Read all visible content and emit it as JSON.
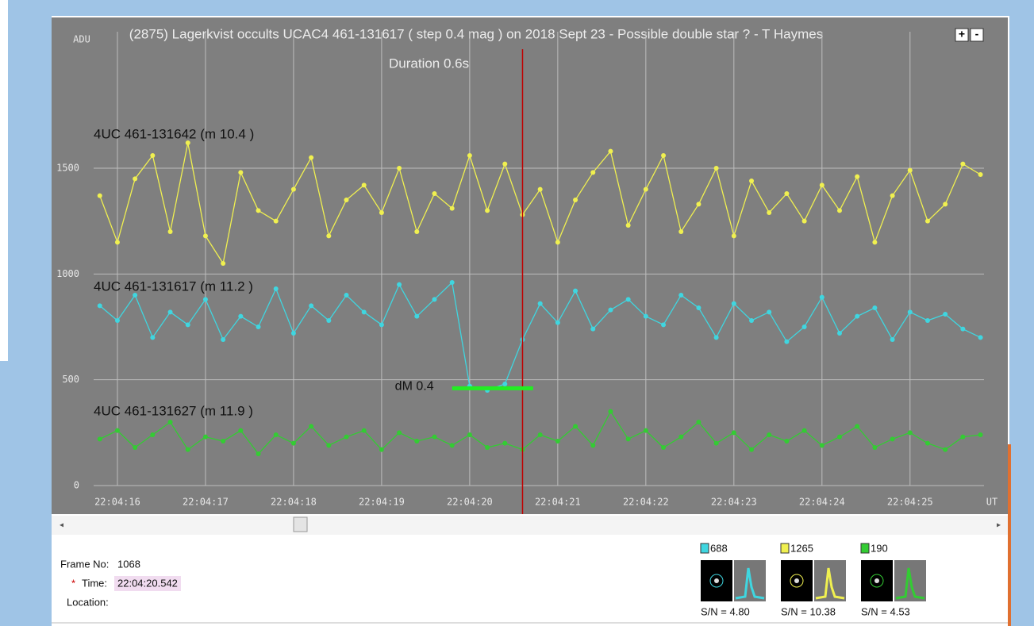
{
  "chart_data": {
    "type": "line",
    "title": "(2875) Lagerkvist occults UCAC4 461-131617 ( step 0.4 mag ) on 2018 Sept 23 - Possible double star ? - T Haymes",
    "ylabel": "ADU",
    "xlabel": "UT",
    "annotation": "Duration 0.6s",
    "dm_label": "dM  0.4",
    "dm_bar": {
      "x": [
        19.8,
        20.72
      ],
      "y": 460
    },
    "cursor_x": 20.6,
    "x": [
      15.8,
      16.0,
      16.2,
      16.4,
      16.6,
      16.8,
      17.0,
      17.2,
      17.4,
      17.6,
      17.8,
      18.0,
      18.2,
      18.4,
      18.6,
      18.8,
      19.0,
      19.2,
      19.4,
      19.6,
      19.8,
      20.0,
      20.2,
      20.4,
      20.6,
      20.8,
      21.0,
      21.2,
      21.4,
      21.6,
      21.8,
      22.0,
      22.2,
      22.4,
      22.6,
      22.8,
      23.0,
      23.2,
      23.4,
      23.6,
      23.8,
      24.0,
      24.2,
      24.4,
      24.6,
      24.8,
      25.0,
      25.2,
      25.4,
      25.6,
      25.8
    ],
    "series": [
      {
        "name": "4UC 461-131642 (m 10.4 )",
        "color": "#f0f050",
        "values": [
          1370,
          1150,
          1450,
          1560,
          1200,
          1620,
          1180,
          1050,
          1480,
          1300,
          1250,
          1400,
          1550,
          1180,
          1350,
          1420,
          1290,
          1500,
          1200,
          1380,
          1310,
          1560,
          1300,
          1520,
          1280,
          1400,
          1150,
          1350,
          1480,
          1580,
          1230,
          1400,
          1560,
          1200,
          1330,
          1500,
          1180,
          1440,
          1290,
          1380,
          1250,
          1420,
          1300,
          1460,
          1150,
          1370,
          1490,
          1250,
          1330,
          1520,
          1470
        ]
      },
      {
        "name": "4UC 461-131617 (m 11.2 )",
        "color": "#3fd6e0",
        "values": [
          850,
          780,
          900,
          700,
          820,
          760,
          880,
          690,
          800,
          750,
          930,
          720,
          850,
          780,
          900,
          820,
          760,
          950,
          800,
          880,
          960,
          470,
          450,
          480,
          690,
          860,
          770,
          920,
          740,
          830,
          880,
          800,
          760,
          900,
          840,
          700,
          860,
          780,
          820,
          680,
          750,
          890,
          720,
          800,
          840,
          690,
          820,
          780,
          810,
          740,
          700
        ]
      },
      {
        "name": "4UC 461-131627 (m 11.9 )",
        "color": "#33cc33",
        "values": [
          220,
          260,
          180,
          240,
          300,
          170,
          230,
          210,
          260,
          150,
          240,
          200,
          280,
          190,
          230,
          260,
          170,
          250,
          210,
          230,
          190,
          240,
          180,
          200,
          170,
          240,
          210,
          280,
          190,
          350,
          220,
          260,
          180,
          230,
          300,
          200,
          250,
          170,
          240,
          210,
          260,
          190,
          230,
          280,
          180,
          220,
          250,
          200,
          170,
          230,
          240
        ]
      }
    ],
    "xlim": [
      15.73,
      25.84
    ],
    "xticks": [
      {
        "value": 16,
        "label": "22:04:16"
      },
      {
        "value": 17,
        "label": "22:04:17"
      },
      {
        "value": 18,
        "label": "22:04:18"
      },
      {
        "value": 19,
        "label": "22:04:19"
      },
      {
        "value": 20,
        "label": "22:04:20"
      },
      {
        "value": 21,
        "label": "22:04:21"
      },
      {
        "value": 22,
        "label": "22:04:22"
      },
      {
        "value": 23,
        "label": "22:04:23"
      },
      {
        "value": 24,
        "label": "22:04:24"
      },
      {
        "value": 25,
        "label": "22:04:25"
      }
    ],
    "ylim": [
      0,
      2100
    ],
    "yticks": [
      0,
      500,
      1000,
      1500
    ],
    "grid": true
  },
  "toolbar": {
    "zoom_in": "+",
    "zoom_out": "-"
  },
  "info": {
    "frame_label": "Frame No:",
    "frame": "1068",
    "time_marker": "*",
    "time_label": "Time:",
    "time": "22:04:20.542",
    "location_label": "Location:"
  },
  "targets": [
    {
      "value": "688",
      "color": "#3fd6e0",
      "snr": "S/N =  4.80"
    },
    {
      "value": "1265",
      "color": "#f0f050",
      "snr": "S/N =  10.38"
    },
    {
      "value": "190",
      "color": "#33cc33",
      "snr": "S/N =  4.53"
    }
  ]
}
